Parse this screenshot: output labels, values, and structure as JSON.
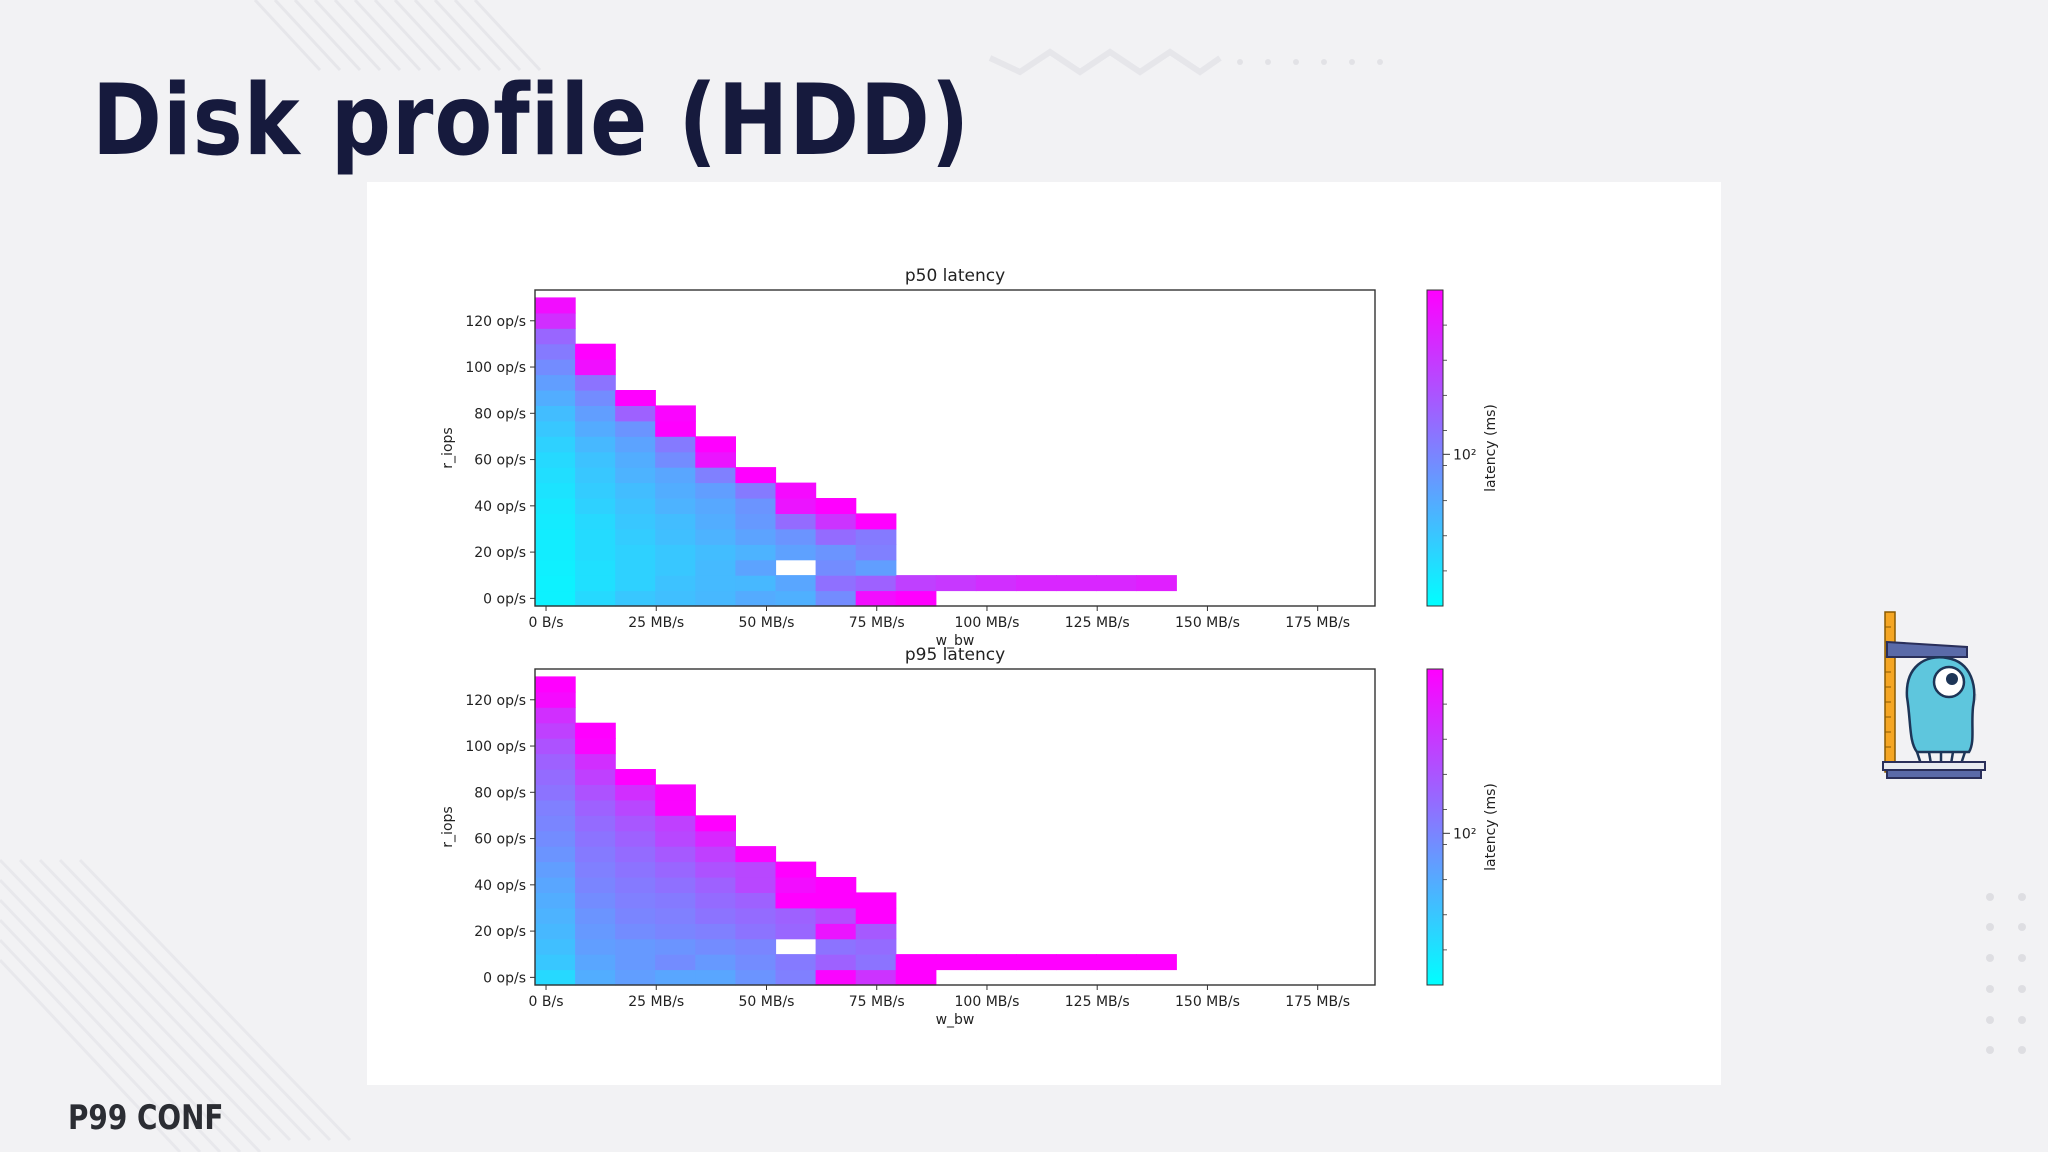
{
  "slide": {
    "title": "Disk profile (HDD)",
    "brand": "P99 CONF"
  },
  "colors": {
    "background": "#f2f2f4",
    "title": "#161a3d",
    "cmap_low": "#00ffff",
    "cmap_high": "#ff00ff",
    "empty_cell": "#ffffff"
  },
  "icons": [
    "mascot-octopus-measuring-icon",
    "plus-decoration-icon",
    "dot-grid-decoration-icon"
  ],
  "chart_data": [
    {
      "type": "heatmap",
      "title": "p50 latency",
      "xlabel": "w_bw",
      "ylabel": "r_iops",
      "colorbar_label": "latency (ms)",
      "colorbar_tick": "10²",
      "colorscale": "log",
      "x_ticks": [
        "0 B/s",
        "25 MB/s",
        "50 MB/s",
        "75 MB/s",
        "100 MB/s",
        "125 MB/s",
        "150 MB/s",
        "175 MB/s"
      ],
      "x_tick_values": [
        0,
        25,
        50,
        75,
        100,
        125,
        150,
        175
      ],
      "xlim": [
        -2.5,
        188
      ],
      "y_ticks": [
        "0 op/s",
        "20 op/s",
        "40 op/s",
        "60 op/s",
        "80 op/s",
        "100 op/s",
        "120 op/s"
      ],
      "y_tick_values": [
        0,
        20,
        40,
        60,
        80,
        100,
        120
      ],
      "ylim": [
        -3.3,
        133.3
      ],
      "col_start": 0,
      "col_width": 9.09,
      "row_height": 6.67,
      "rows_from_bottom": [
        [
          0.05,
          0.15,
          0.22,
          0.25,
          0.28,
          0.33,
          0.31,
          0.45,
          0.95,
          1.0
        ],
        [
          0.05,
          0.12,
          0.18,
          0.24,
          0.27,
          0.28,
          0.35,
          0.56,
          0.62,
          0.75,
          0.78,
          0.82,
          0.85,
          0.85,
          0.85,
          0.88
        ],
        [
          0.06,
          0.12,
          0.18,
          0.22,
          0.27,
          0.36,
          null,
          0.45,
          0.38
        ],
        [
          0.07,
          0.14,
          0.18,
          0.22,
          0.26,
          0.3,
          0.37,
          0.42,
          0.5
        ],
        [
          0.07,
          0.14,
          0.2,
          0.25,
          0.3,
          0.36,
          0.42,
          0.58,
          0.52
        ],
        [
          0.08,
          0.15,
          0.22,
          0.26,
          0.32,
          0.4,
          0.58,
          0.8,
          1.0
        ],
        [
          0.09,
          0.18,
          0.24,
          0.3,
          0.34,
          0.42,
          0.92,
          1.0
        ],
        [
          0.11,
          0.2,
          0.26,
          0.32,
          0.38,
          0.52,
          0.96
        ],
        [
          0.13,
          0.22,
          0.3,
          0.35,
          0.5,
          1.0
        ],
        [
          0.15,
          0.24,
          0.32,
          0.45,
          0.92
        ],
        [
          0.18,
          0.28,
          0.36,
          0.52,
          1.0
        ],
        [
          0.22,
          0.33,
          0.42,
          1.0
        ],
        [
          0.26,
          0.38,
          0.62,
          0.98
        ],
        [
          0.32,
          0.45,
          1.0
        ],
        [
          0.38,
          0.55
        ],
        [
          0.45,
          0.94
        ],
        [
          0.52,
          1.0
        ],
        [
          0.6
        ],
        [
          0.82
        ],
        [
          0.95
        ]
      ]
    },
    {
      "type": "heatmap",
      "title": "p95 latency",
      "xlabel": "w_bw",
      "ylabel": "r_iops",
      "colorbar_label": "latency (ms)",
      "colorbar_tick": "10²",
      "colorscale": "log",
      "x_ticks": [
        "0 B/s",
        "25 MB/s",
        "50 MB/s",
        "75 MB/s",
        "100 MB/s",
        "125 MB/s",
        "150 MB/s",
        "175 MB/s"
      ],
      "x_tick_values": [
        0,
        25,
        50,
        75,
        100,
        125,
        150,
        175
      ],
      "xlim": [
        -2.5,
        188
      ],
      "y_ticks": [
        "0 op/s",
        "20 op/s",
        "40 op/s",
        "60 op/s",
        "80 op/s",
        "100 op/s",
        "120 op/s"
      ],
      "y_tick_values": [
        0,
        20,
        40,
        60,
        80,
        100,
        120
      ],
      "ylim": [
        -3.3,
        133.3
      ],
      "col_start": 0,
      "col_width": 9.09,
      "row_height": 6.67,
      "rows_from_bottom": [
        [
          0.15,
          0.32,
          0.38,
          0.35,
          0.35,
          0.42,
          0.5,
          0.98,
          0.8,
          1.0
        ],
        [
          0.22,
          0.35,
          0.4,
          0.45,
          0.4,
          0.45,
          0.52,
          0.62,
          0.55,
          1.0,
          1.0,
          1.0,
          1.0,
          1.0,
          1.0,
          1.0
        ],
        [
          0.25,
          0.38,
          0.4,
          0.42,
          0.45,
          0.48,
          null,
          0.55,
          0.58
        ],
        [
          0.28,
          0.4,
          0.45,
          0.48,
          0.5,
          0.55,
          0.6,
          0.92,
          0.65
        ],
        [
          0.3,
          0.42,
          0.48,
          0.5,
          0.55,
          0.58,
          0.62,
          0.7,
          1.0
        ],
        [
          0.32,
          0.45,
          0.5,
          0.52,
          0.58,
          0.62,
          1.0,
          1.0,
          1.0
        ],
        [
          0.35,
          0.48,
          0.52,
          0.56,
          0.62,
          0.72,
          0.95,
          1.0
        ],
        [
          0.38,
          0.5,
          0.55,
          0.6,
          0.68,
          0.72,
          1.0
        ],
        [
          0.42,
          0.52,
          0.58,
          0.65,
          0.75,
          0.98
        ],
        [
          0.45,
          0.55,
          0.62,
          0.72,
          0.85
        ],
        [
          0.48,
          0.58,
          0.66,
          0.75,
          1.0
        ],
        [
          0.5,
          0.62,
          0.72,
          0.98
        ],
        [
          0.55,
          0.68,
          0.82,
          0.98
        ],
        [
          0.58,
          0.75,
          1.0
        ],
        [
          0.62,
          0.82
        ],
        [
          0.68,
          0.98
        ],
        [
          0.75,
          1.0
        ],
        [
          0.82
        ],
        [
          0.96
        ],
        [
          1.0
        ]
      ]
    }
  ]
}
